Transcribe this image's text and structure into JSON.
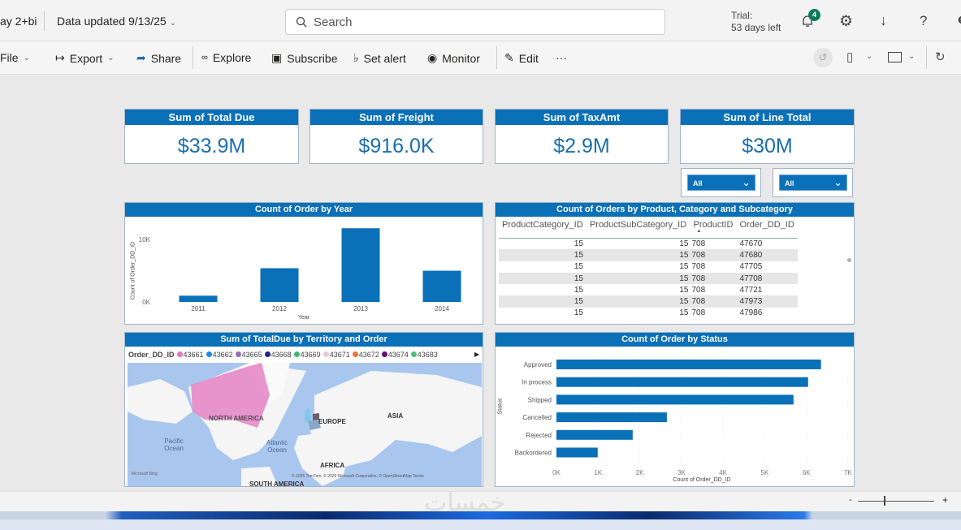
{
  "header": {
    "workspace": "ay 2+bi",
    "data_updated": "Data updated 9/13/25",
    "search_placeholder": "Search",
    "trial_label": "Trial:",
    "trial_days": "53 days left",
    "notification_count": "4"
  },
  "toolbar": {
    "file": "File",
    "export": "Export",
    "share": "Share",
    "explore": "Explore",
    "subscribe": "Subscribe",
    "set_alert": "Set alert",
    "monitor": "Monitor",
    "edit": "Edit",
    "more": "···"
  },
  "kpis": [
    {
      "title": "Sum of Total Due",
      "value": "$33.9M"
    },
    {
      "title": "Sum of Freight",
      "value": "$916.0K"
    },
    {
      "title": "Sum of TaxAmt",
      "value": "$2.9M"
    },
    {
      "title": "Sum of Line Total",
      "value": "$30M"
    }
  ],
  "slicers": [
    {
      "value": "All"
    },
    {
      "value": "All"
    }
  ],
  "table": {
    "title": "Count of Orders by Product, Category and Subcategory",
    "columns": [
      "ProductCategory_ID",
      "ProductSubCategory_ID",
      "ProductID",
      "Order_DD_ID"
    ],
    "rows": [
      [
        "15",
        "15",
        "708",
        "47670"
      ],
      [
        "15",
        "15",
        "708",
        "47680"
      ],
      [
        "15",
        "15",
        "708",
        "47705"
      ],
      [
        "15",
        "15",
        "708",
        "47708"
      ],
      [
        "15",
        "15",
        "708",
        "47721"
      ],
      [
        "15",
        "15",
        "708",
        "47973"
      ],
      [
        "15",
        "15",
        "708",
        "47986"
      ]
    ]
  },
  "map": {
    "title": "Sum of TotalDue by Territory and Order",
    "legend_title": "Order_DD_ID",
    "legend": [
      {
        "label": "43661",
        "color": "#e377c2"
      },
      {
        "label": "43662",
        "color": "#1f8ae6"
      },
      {
        "label": "43665",
        "color": "#9a6bb5"
      },
      {
        "label": "43668",
        "color": "#1a237e"
      },
      {
        "label": "43669",
        "color": "#3cb878"
      },
      {
        "label": "43671",
        "color": "#e8c8d8"
      },
      {
        "label": "43672",
        "color": "#e8773a"
      },
      {
        "label": "43674",
        "color": "#6a0a7a"
      },
      {
        "label": "43683",
        "color": "#4cc07a"
      }
    ],
    "labels": {
      "na": "NORTH AMERICA",
      "europe": "EUROPE",
      "asia": "ASIA",
      "africa": "AFRICA",
      "sa": "SOUTH AMERICA",
      "pacific": "Pacific Ocean",
      "atlantic": "Atlantic Ocean"
    },
    "brand": "Microsoft Bing",
    "attribution": "© 2025 TomTom, © 2025 Microsoft Corporation, © OpenStreetMap  Terms"
  },
  "chart_data": [
    {
      "type": "bar",
      "title": "Count of Order by Year",
      "xlabel": "Year",
      "ylabel": "Count of Order_DD_ID",
      "categories": [
        "2011",
        "2012",
        "2013",
        "2014"
      ],
      "values": [
        1000,
        5400,
        11800,
        5000
      ],
      "yticks": [
        "0K",
        "10K"
      ],
      "ylim": [
        0,
        13000
      ],
      "color": "#0a70b8"
    },
    {
      "type": "bar",
      "orientation": "horizontal",
      "title": "Count of Order by Status",
      "xlabel": "Count of Order_DD_ID",
      "ylabel": "Status",
      "categories": [
        "Approved",
        "In process",
        "Shipped",
        "Cancelled",
        "Rejected",
        "Backordered"
      ],
      "values": [
        6350,
        6040,
        5690,
        2650,
        1830,
        990
      ],
      "xticks": [
        "0K",
        "1K",
        "2K",
        "3K",
        "4K",
        "5K",
        "6K",
        "7K"
      ],
      "xlim": [
        0,
        7000
      ],
      "color": "#0a70b8"
    }
  ],
  "footer": {
    "zoom_minus": "-",
    "zoom_plus": "+",
    "watermark": "خمسات"
  }
}
